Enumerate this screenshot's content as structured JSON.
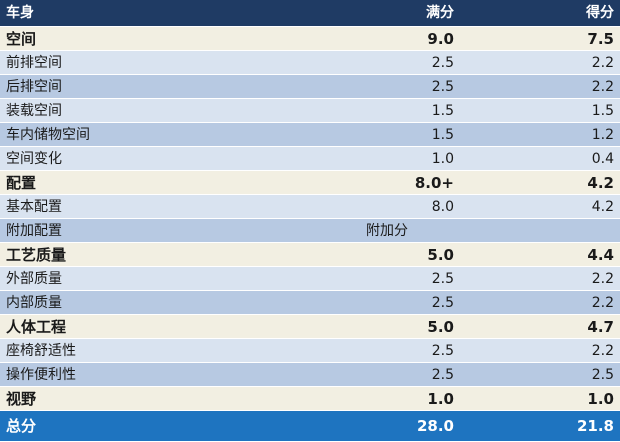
{
  "header": {
    "category": "车身",
    "full": "满分",
    "score": "得分"
  },
  "rows": [
    {
      "type": "section",
      "name": "空间",
      "full": "9.0",
      "score": "7.5"
    },
    {
      "type": "item",
      "name": "前排空间",
      "full": "2.5",
      "score": "2.2"
    },
    {
      "type": "item",
      "name": "后排空间",
      "full": "2.5",
      "score": "2.2"
    },
    {
      "type": "item",
      "name": "装载空间",
      "full": "1.5",
      "score": "1.5"
    },
    {
      "type": "item",
      "name": "车内储物空间",
      "full": "1.5",
      "score": "1.2"
    },
    {
      "type": "item",
      "name": "空间变化",
      "full": "1.0",
      "score": "0.4"
    },
    {
      "type": "section",
      "name": "配置",
      "full": "8.0+",
      "score": "4.2"
    },
    {
      "type": "item",
      "name": "基本配置",
      "full": "8.0",
      "score": "4.2"
    },
    {
      "type": "item",
      "name": "附加配置",
      "full": "附加分",
      "score": ""
    },
    {
      "type": "section",
      "name": "工艺质量",
      "full": "5.0",
      "score": "4.4"
    },
    {
      "type": "item",
      "name": "外部质量",
      "full": "2.5",
      "score": "2.2"
    },
    {
      "type": "item",
      "name": "内部质量",
      "full": "2.5",
      "score": "2.2"
    },
    {
      "type": "section",
      "name": "人体工程",
      "full": "5.0",
      "score": "4.7"
    },
    {
      "type": "item",
      "name": "座椅舒适性",
      "full": "2.5",
      "score": "2.2"
    },
    {
      "type": "item",
      "name": "操作便利性",
      "full": "2.5",
      "score": "2.5"
    },
    {
      "type": "section",
      "name": "视野",
      "full": "1.0",
      "score": "1.0"
    }
  ],
  "total": {
    "name": "总分",
    "full": "28.0",
    "score": "21.8"
  },
  "colors": {
    "header_bg": "#1f3b64",
    "section_bg": "#f2efe2",
    "item_light": "#d9e3f0",
    "item_dark": "#b7c9e2",
    "total_bg": "#1e74c0"
  }
}
